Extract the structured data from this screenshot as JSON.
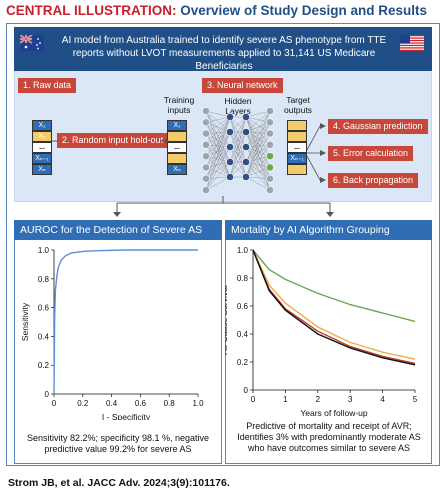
{
  "title": {
    "prefix": "CENTRAL ILLUSTRATION:",
    "text": "Overview of Study Design and Results"
  },
  "header": {
    "line1": "AI model from Australia trained to identify severe AS phenotype from TTE",
    "line2": "reports without LVOT measurements applied to 31,141 US Medicare Beneficiaries"
  },
  "steps": {
    "raw_data": "1. Raw data",
    "holdout": "2. Random input hold-out",
    "neural_network": "3. Neural network",
    "gaussian": "4. Gaussian prediction",
    "error": "5. Error calculation",
    "backprop": "6. Back propagation"
  },
  "labels": {
    "training_inputs": "Training inputs",
    "hidden_layers": "Hidden Layers",
    "target_outputs": "Target outputs"
  },
  "stack_cells": {
    "x1": "X₁",
    "x2": "X₂",
    "dots": "...",
    "xn1": "Xₙ₋₁",
    "xn": "Xₙ",
    "xn_target": "Xₙ₋₁"
  },
  "left_panel": {
    "title": "AUROC for the Detection of Severe AS",
    "caption_line1": "Sensitivity 82.2%; specificity 98.1 %, negative",
    "caption_line2": "predictive value 99.2% for severe AS"
  },
  "right_panel": {
    "title": "Mortality by AI Algorithm Grouping",
    "caption_line1": "Predictive of mortality and receipt of AVR;",
    "caption_line2": "Identifies 3% with predominantly moderate AS",
    "caption_line3": "who have outcomes similar to severe AS"
  },
  "chart_data": [
    {
      "type": "line",
      "title": "AUROC for the Detection of Severe AS",
      "xlabel": "I - Specificity",
      "ylabel": "Sensitivity",
      "xlim": [
        0,
        1
      ],
      "ylim": [
        0,
        1
      ],
      "x_ticks": [
        "0",
        "0.2",
        "0.4",
        "0.6",
        "0.8",
        "1.0"
      ],
      "y_ticks": [
        "0",
        "0.2",
        "0.4",
        "0.6",
        "0.8",
        "1.0"
      ],
      "series": [
        {
          "color": "#5b8fd6",
          "x": [
            0,
            0.005,
            0.01,
            0.02,
            0.03,
            0.05,
            0.08,
            0.12,
            0.2,
            0.3,
            0.5,
            0.7,
            1.0
          ],
          "y": [
            0,
            0.55,
            0.72,
            0.82,
            0.88,
            0.93,
            0.96,
            0.98,
            0.99,
            0.995,
            1.0,
            1.0,
            1.0
          ]
        }
      ]
    },
    {
      "type": "line",
      "title": "Mortality by AI Algorithm Grouping",
      "xlabel": "Years of follow-up",
      "ylabel": "All-Cause Survival",
      "xlim": [
        0,
        5
      ],
      "ylim": [
        0,
        1
      ],
      "x_ticks": [
        "0",
        "1",
        "2",
        "3",
        "4",
        "5"
      ],
      "y_ticks": [
        "0",
        "0.2",
        "0.4",
        "0.6",
        "0.8",
        "1.0"
      ],
      "series": [
        {
          "color": "#6aa84f",
          "x": [
            0,
            0.5,
            1,
            2,
            3,
            4,
            5
          ],
          "y": [
            1.0,
            0.86,
            0.79,
            0.69,
            0.61,
            0.55,
            0.49
          ]
        },
        {
          "color": "#e8b04b",
          "x": [
            0,
            0.5,
            1,
            2,
            3,
            4,
            5
          ],
          "y": [
            1.0,
            0.75,
            0.62,
            0.45,
            0.34,
            0.27,
            0.22
          ]
        },
        {
          "color": "#c0392b",
          "x": [
            0,
            0.5,
            1,
            2,
            3,
            4,
            5
          ],
          "y": [
            1.0,
            0.72,
            0.58,
            0.42,
            0.31,
            0.24,
            0.19
          ]
        },
        {
          "color": "#111111",
          "x": [
            0,
            0.5,
            1,
            2,
            3,
            4,
            5
          ],
          "y": [
            1.0,
            0.71,
            0.57,
            0.4,
            0.3,
            0.23,
            0.18
          ]
        }
      ]
    }
  ],
  "footer": "Strom JB, et al. JACC Adv. 2024;3(9):101176."
}
